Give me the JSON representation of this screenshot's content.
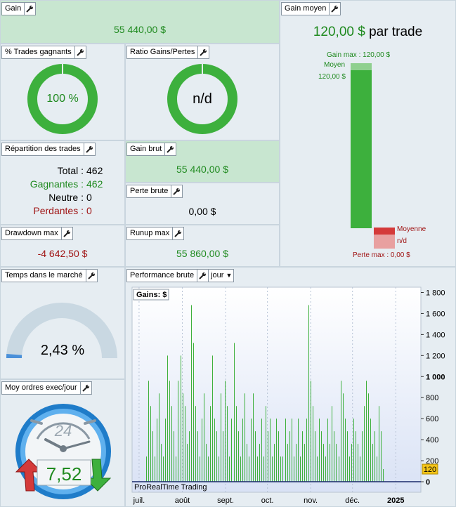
{
  "gain": {
    "title": "Gain",
    "value": "55 440,00 $"
  },
  "pct_gagnants": {
    "title": "% Trades gagnants",
    "value": "100 %",
    "fraction": 1.0
  },
  "ratio": {
    "title": "Ratio Gains/Pertes",
    "value": "n/d",
    "fraction": 1.0
  },
  "repartition": {
    "title": "Répartition des trades",
    "total_label": "Total :",
    "total_value": "462",
    "gagnantes_label": "Gagnantes :",
    "gagnantes_value": "462",
    "neutre_label": "Neutre :",
    "neutre_value": "0",
    "perdantes_label": "Perdantes :",
    "perdantes_value": "0"
  },
  "gain_brut": {
    "title": "Gain brut",
    "value": "55 440,00 $"
  },
  "perte_brute": {
    "title": "Perte brute",
    "value": "0,00 $"
  },
  "drawdown": {
    "title": "Drawdown max",
    "value": "-4 642,50 $"
  },
  "runup": {
    "title": "Runup max",
    "value": "55 860,00 $"
  },
  "gain_moyen": {
    "title": "Gain moyen",
    "value": "120,00 $",
    "unit": "par trade",
    "gain_max_label": "Gain max : 120,00 $",
    "moyen_label": "Moyen",
    "moyen_value": "120,00 $",
    "moyenne_label": "Moyenne",
    "moyenne_value": "n/d",
    "perte_max_label": "Perte max : 0,00 $"
  },
  "temps": {
    "title": "Temps dans le marché",
    "value": "2,43 %",
    "fraction": 0.0243
  },
  "ordres": {
    "title": "Moy ordres exec/jour",
    "dial_number": "24",
    "value": "7,52"
  },
  "perf": {
    "title": "Performance brute",
    "period": "jour",
    "gains_label": "Gains: $",
    "watermark": "ProRealTime Trading",
    "marker_label": "120"
  },
  "colors": {
    "green": "#3db03d",
    "red": "#d43a3a",
    "gauge": "#c9d8e2",
    "accent": "#1f8a1f",
    "negative": "#a01515"
  },
  "chart_data": {
    "type": "bar",
    "title": "Gains: $",
    "ylim": [
      -100,
      1850
    ],
    "y_ticks": [
      {
        "v": 1800,
        "label": "1 800",
        "bold": false
      },
      {
        "v": 1600,
        "label": "1 600",
        "bold": false
      },
      {
        "v": 1400,
        "label": "1 400",
        "bold": false
      },
      {
        "v": 1200,
        "label": "1 200",
        "bold": false
      },
      {
        "v": 1000,
        "label": "1 000",
        "bold": true
      },
      {
        "v": 800,
        "label": "800",
        "bold": false
      },
      {
        "v": 600,
        "label": "600",
        "bold": false
      },
      {
        "v": 400,
        "label": "400",
        "bold": false
      },
      {
        "v": 200,
        "label": "200",
        "bold": false
      },
      {
        "v": 0,
        "label": "0",
        "bold": true
      }
    ],
    "x_labels": [
      {
        "label": "juil.",
        "day": 1,
        "bold": false
      },
      {
        "label": "août",
        "day": 32,
        "bold": false
      },
      {
        "label": "sept.",
        "day": 63,
        "bold": false
      },
      {
        "label": "oct.",
        "day": 93,
        "bold": false
      },
      {
        "label": "nov.",
        "day": 124,
        "bold": false
      },
      {
        "label": "déc.",
        "day": 154,
        "bold": false
      },
      {
        "label": "2025",
        "day": 185,
        "bold": true
      }
    ],
    "day_range": [
      -4,
      203
    ],
    "x_unit": "day of period (1 = 1 juil.)",
    "values": [
      240,
      960,
      720,
      480,
      240,
      600,
      840,
      360,
      240,
      600,
      1200,
      960,
      720,
      480,
      240,
      960,
      1200,
      840,
      720,
      360,
      480,
      1680,
      1320,
      720,
      480,
      240,
      600,
      840,
      360,
      240,
      720,
      1200,
      600,
      480,
      240,
      840,
      480,
      960,
      720,
      240,
      600,
      1320,
      720,
      480,
      240,
      600,
      840,
      360,
      240,
      600,
      840,
      480,
      240,
      360,
      600,
      240,
      720,
      480,
      600,
      240,
      360,
      600,
      480,
      240,
      240,
      600,
      360,
      480,
      600,
      240,
      360,
      600,
      240,
      480,
      360,
      600,
      1680,
      960,
      720,
      480,
      240,
      600,
      480,
      360,
      240,
      600,
      360,
      720,
      480,
      360,
      240,
      960,
      840,
      600,
      480,
      240,
      360,
      600,
      480,
      360,
      240,
      480,
      720,
      960,
      840,
      600,
      360,
      480,
      240,
      720,
      480,
      120
    ]
  }
}
